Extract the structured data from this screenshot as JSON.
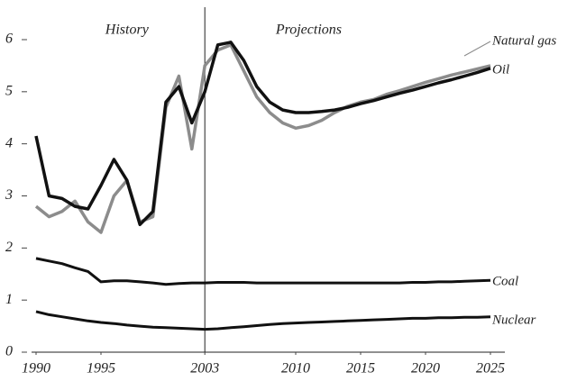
{
  "chart_data": {
    "type": "line",
    "annotations": [
      {
        "text": "History",
        "x": 1997
      },
      {
        "text": "Projections",
        "x": 2011
      }
    ],
    "divider": 2003,
    "x": [
      1990,
      1991,
      1992,
      1993,
      1994,
      1995,
      1996,
      1997,
      1998,
      1999,
      2000,
      2001,
      2002,
      2003,
      2004,
      2005,
      2006,
      2007,
      2008,
      2009,
      2010,
      2011,
      2012,
      2013,
      2014,
      2015,
      2016,
      2017,
      2018,
      2019,
      2020,
      2021,
      2022,
      2023,
      2024,
      2025
    ],
    "series": [
      {
        "name": "Natural gas",
        "color": "#8c8c8c",
        "values": [
          2.8,
          2.6,
          2.7,
          2.9,
          2.5,
          2.3,
          3.0,
          3.3,
          2.5,
          2.6,
          4.7,
          5.3,
          3.9,
          5.5,
          5.8,
          5.9,
          5.4,
          4.9,
          4.6,
          4.4,
          4.3,
          4.35,
          4.45,
          4.6,
          4.72,
          4.8,
          4.85,
          4.95,
          5.02,
          5.1,
          5.18,
          5.25,
          5.32,
          5.38,
          5.44,
          5.5
        ]
      },
      {
        "name": "Oil",
        "color": "#111111",
        "values": [
          4.15,
          3.0,
          2.95,
          2.8,
          2.75,
          3.2,
          3.7,
          3.3,
          2.45,
          2.7,
          4.8,
          5.1,
          4.4,
          5.0,
          5.9,
          5.95,
          5.6,
          5.1,
          4.8,
          4.65,
          4.6,
          4.6,
          4.62,
          4.65,
          4.7,
          4.77,
          4.83,
          4.9,
          4.97,
          5.03,
          5.1,
          5.17,
          5.23,
          5.3,
          5.37,
          5.45
        ]
      },
      {
        "name": "Coal",
        "color": "#111111",
        "values": [
          1.8,
          1.75,
          1.7,
          1.62,
          1.55,
          1.35,
          1.37,
          1.37,
          1.35,
          1.33,
          1.3,
          1.32,
          1.33,
          1.33,
          1.34,
          1.34,
          1.34,
          1.33,
          1.33,
          1.33,
          1.33,
          1.33,
          1.33,
          1.33,
          1.33,
          1.33,
          1.33,
          1.33,
          1.33,
          1.34,
          1.34,
          1.35,
          1.35,
          1.36,
          1.37,
          1.38
        ]
      },
      {
        "name": "Nuclear",
        "color": "#111111",
        "values": [
          0.78,
          0.72,
          0.68,
          0.64,
          0.6,
          0.57,
          0.55,
          0.52,
          0.5,
          0.48,
          0.47,
          0.46,
          0.45,
          0.44,
          0.45,
          0.47,
          0.49,
          0.51,
          0.53,
          0.55,
          0.56,
          0.57,
          0.58,
          0.59,
          0.6,
          0.61,
          0.62,
          0.63,
          0.64,
          0.65,
          0.65,
          0.66,
          0.66,
          0.67,
          0.67,
          0.68
        ]
      }
    ],
    "xlim": [
      1990,
      2026
    ],
    "xticks": [
      1990,
      1995,
      2003,
      2010,
      2015,
      2020,
      2025
    ],
    "ylim": [
      0,
      6
    ],
    "yticks": [
      0,
      1,
      2,
      3,
      4,
      5,
      6
    ]
  }
}
